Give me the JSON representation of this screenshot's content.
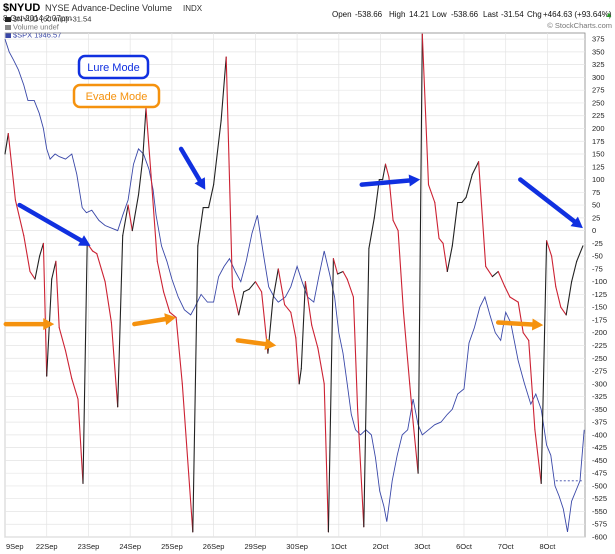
{
  "header": {
    "symbol": "$NYUD",
    "name": "NYSE Advance-Decline Volume",
    "exchange": "INDX",
    "date": "8-Oct-2014 2:07pm",
    "ohlc": {
      "open_label": "Open",
      "open": "-538.66",
      "high_label": "High",
      "high": "14.21",
      "low_label": "Low",
      "low": "-538.66",
      "last_label": "Last",
      "last": "-31.54",
      "chg_label": "Chg",
      "chg": "+464.63 (+93.64%)",
      "up_arrow": "▲"
    },
    "watermark": "© StockCharts.com"
  },
  "legend": [
    {
      "label": "$NYUD (60 min) -31.54",
      "color": "#222222"
    },
    {
      "label": "Volume undef",
      "color": "#888888"
    },
    {
      "label": "$SPX 1946.57",
      "color": "#3a48a8"
    }
  ],
  "annotations": {
    "lure_mode": "Lure Mode",
    "evade_mode": "Evade Mode",
    "lure_color": "#1030e0",
    "evade_color": "#f5920e"
  },
  "chart_data": {
    "type": "line",
    "y_axis": {
      "min": -600,
      "max": 375,
      "step": 25,
      "labels": [
        "375",
        "350",
        "325",
        "300",
        "275",
        "250",
        "225",
        "200",
        "175",
        "150",
        "125",
        "100",
        "75",
        "50",
        "25",
        "0",
        "-25",
        "-50",
        "-75",
        "-100",
        "-125",
        "-150",
        "-175",
        "-200",
        "-225",
        "-250",
        "-275",
        "-300",
        "-325",
        "-350",
        "-375",
        "-400",
        "-425",
        "-450",
        "-475",
        "-500",
        "-525",
        "-550",
        "-575",
        "-600"
      ]
    },
    "x_axis": {
      "ticks": [
        {
          "label": "9Sep",
          "pos": 0
        },
        {
          "label": "22Sep",
          "pos": 1
        },
        {
          "label": "23Sep",
          "pos": 2
        },
        {
          "label": "24Sep",
          "pos": 3
        },
        {
          "label": "25Sep",
          "pos": 4
        },
        {
          "label": "26Sep",
          "pos": 5
        },
        {
          "label": "29Sep",
          "pos": 6
        },
        {
          "label": "30Sep",
          "pos": 7
        },
        {
          "label": "1Oct",
          "pos": 8
        },
        {
          "label": "2Oct",
          "pos": 9
        },
        {
          "label": "3Oct",
          "pos": 10
        },
        {
          "label": "6Oct",
          "pos": 11
        },
        {
          "label": "7Oct",
          "pos": 12
        },
        {
          "label": "8Oct",
          "pos": 13
        }
      ],
      "x_max": 13.9
    },
    "grid": true,
    "reference_line": {
      "value": -490,
      "x_from": 13.2,
      "x_to": 13.85,
      "color": "#3a48a8"
    },
    "series": [
      {
        "name": "$NYUD (60 min) -31.54",
        "color_up": "#222222",
        "color_down": "#cc2233",
        "points": [
          [
            0.0,
            150
          ],
          [
            0.08,
            190
          ],
          [
            0.25,
            60
          ],
          [
            0.45,
            -10
          ],
          [
            0.6,
            -80
          ],
          [
            0.72,
            -95
          ],
          [
            0.83,
            -50
          ],
          [
            0.92,
            -25
          ],
          [
            1.0,
            -285
          ],
          [
            1.12,
            -95
          ],
          [
            1.22,
            -60
          ],
          [
            1.3,
            -190
          ],
          [
            1.45,
            -235
          ],
          [
            1.6,
            -290
          ],
          [
            1.75,
            -330
          ],
          [
            1.87,
            -495
          ],
          [
            1.97,
            -25
          ],
          [
            2.1,
            -40
          ],
          [
            2.2,
            -45
          ],
          [
            2.4,
            -100
          ],
          [
            2.55,
            -180
          ],
          [
            2.7,
            -345
          ],
          [
            2.82,
            -10
          ],
          [
            2.95,
            50
          ],
          [
            3.05,
            0
          ],
          [
            3.2,
            70
          ],
          [
            3.3,
            140
          ],
          [
            3.38,
            240
          ],
          [
            3.5,
            110
          ],
          [
            3.65,
            -60
          ],
          [
            3.8,
            -120
          ],
          [
            3.95,
            -160
          ],
          [
            4.1,
            -170
          ],
          [
            4.25,
            -300
          ],
          [
            4.5,
            -590
          ],
          [
            4.62,
            -30
          ],
          [
            4.75,
            45
          ],
          [
            4.88,
            45
          ],
          [
            5.0,
            90
          ],
          [
            5.18,
            215
          ],
          [
            5.3,
            340
          ],
          [
            5.45,
            -110
          ],
          [
            5.6,
            -165
          ],
          [
            5.72,
            -120
          ],
          [
            5.85,
            -115
          ],
          [
            6.0,
            -100
          ],
          [
            6.15,
            -120
          ],
          [
            6.3,
            -240
          ],
          [
            6.42,
            -135
          ],
          [
            6.55,
            -75
          ],
          [
            6.7,
            -145
          ],
          [
            6.85,
            -160
          ],
          [
            6.97,
            -210
          ],
          [
            7.05,
            -300
          ],
          [
            7.1,
            -270
          ],
          [
            7.2,
            -100
          ],
          [
            7.35,
            -185
          ],
          [
            7.5,
            -230
          ],
          [
            7.65,
            -300
          ],
          [
            7.75,
            -590
          ],
          [
            7.87,
            -55
          ],
          [
            7.97,
            -85
          ],
          [
            8.1,
            -80
          ],
          [
            8.2,
            -95
          ],
          [
            8.35,
            -130
          ],
          [
            8.45,
            -350
          ],
          [
            8.6,
            -580
          ],
          [
            8.72,
            -35
          ],
          [
            8.85,
            25
          ],
          [
            8.97,
            100
          ],
          [
            9.05,
            100
          ],
          [
            9.12,
            130
          ],
          [
            9.2,
            105
          ],
          [
            9.3,
            20
          ],
          [
            9.42,
            0
          ],
          [
            9.55,
            -160
          ],
          [
            9.7,
            -300
          ],
          [
            9.78,
            -375
          ],
          [
            9.9,
            -475
          ],
          [
            10.0,
            385
          ],
          [
            10.15,
            90
          ],
          [
            10.3,
            55
          ],
          [
            10.4,
            -15
          ],
          [
            10.5,
            -25
          ],
          [
            10.6,
            -80
          ],
          [
            10.72,
            -30
          ],
          [
            10.85,
            55
          ],
          [
            10.95,
            55
          ],
          [
            11.05,
            65
          ],
          [
            11.2,
            110
          ],
          [
            11.35,
            135
          ],
          [
            11.52,
            -70
          ],
          [
            11.68,
            -90
          ],
          [
            11.82,
            -80
          ],
          [
            11.98,
            -110
          ],
          [
            12.1,
            -130
          ],
          [
            12.3,
            -140
          ],
          [
            12.42,
            -200
          ],
          [
            12.55,
            -215
          ],
          [
            12.7,
            -390
          ],
          [
            12.85,
            -495
          ],
          [
            12.98,
            -20
          ],
          [
            13.1,
            -50
          ],
          [
            13.2,
            -110
          ],
          [
            13.32,
            -150
          ],
          [
            13.45,
            -165
          ],
          [
            13.58,
            -100
          ],
          [
            13.7,
            -60
          ],
          [
            13.85,
            -30
          ]
        ]
      },
      {
        "name": "$SPX 1946.57",
        "color": "#3a48a8",
        "points": [
          [
            0.0,
            375
          ],
          [
            0.1,
            350
          ],
          [
            0.2,
            335
          ],
          [
            0.32,
            315
          ],
          [
            0.45,
            285
          ],
          [
            0.55,
            255
          ],
          [
            0.7,
            255
          ],
          [
            0.82,
            230
          ],
          [
            0.92,
            200
          ],
          [
            1.0,
            160
          ],
          [
            1.08,
            140
          ],
          [
            1.2,
            150
          ],
          [
            1.3,
            145
          ],
          [
            1.45,
            140
          ],
          [
            1.6,
            150
          ],
          [
            1.72,
            110
          ],
          [
            1.85,
            45
          ],
          [
            1.95,
            35
          ],
          [
            2.08,
            40
          ],
          [
            2.25,
            20
          ],
          [
            2.4,
            10
          ],
          [
            2.55,
            5
          ],
          [
            2.7,
            0
          ],
          [
            2.82,
            30
          ],
          [
            2.95,
            60
          ],
          [
            3.08,
            130
          ],
          [
            3.2,
            160
          ],
          [
            3.32,
            150
          ],
          [
            3.45,
            120
          ],
          [
            3.55,
            80
          ],
          [
            3.62,
            30
          ],
          [
            3.75,
            -30
          ],
          [
            3.88,
            -60
          ],
          [
            4.0,
            -95
          ],
          [
            4.15,
            -130
          ],
          [
            4.3,
            -155
          ],
          [
            4.45,
            -165
          ],
          [
            4.55,
            -150
          ],
          [
            4.7,
            -125
          ],
          [
            4.85,
            -140
          ],
          [
            5.0,
            -140
          ],
          [
            5.12,
            -90
          ],
          [
            5.25,
            -70
          ],
          [
            5.38,
            -55
          ],
          [
            5.52,
            -80
          ],
          [
            5.65,
            -100
          ],
          [
            5.78,
            -60
          ],
          [
            5.92,
            -5
          ],
          [
            6.05,
            30
          ],
          [
            6.2,
            -50
          ],
          [
            6.32,
            -110
          ],
          [
            6.45,
            -130
          ],
          [
            6.55,
            -140
          ],
          [
            6.72,
            -130
          ],
          [
            6.85,
            -110
          ],
          [
            7.0,
            -70
          ],
          [
            7.12,
            -100
          ],
          [
            7.25,
            -130
          ],
          [
            7.4,
            -140
          ],
          [
            7.52,
            -90
          ],
          [
            7.65,
            -40
          ],
          [
            7.78,
            -85
          ],
          [
            7.9,
            -130
          ],
          [
            8.0,
            -200
          ],
          [
            8.1,
            -240
          ],
          [
            8.2,
            -300
          ],
          [
            8.3,
            -360
          ],
          [
            8.4,
            -390
          ],
          [
            8.52,
            -400
          ],
          [
            8.65,
            -390
          ],
          [
            8.78,
            -400
          ],
          [
            8.88,
            -445
          ],
          [
            8.98,
            -510
          ],
          [
            9.08,
            -540
          ],
          [
            9.15,
            -570
          ],
          [
            9.28,
            -490
          ],
          [
            9.4,
            -440
          ],
          [
            9.52,
            -400
          ],
          [
            9.65,
            -390
          ],
          [
            9.78,
            -330
          ],
          [
            9.9,
            -380
          ],
          [
            10.0,
            -400
          ],
          [
            10.15,
            -390
          ],
          [
            10.3,
            -380
          ],
          [
            10.45,
            -375
          ],
          [
            10.6,
            -360
          ],
          [
            10.72,
            -350
          ],
          [
            10.85,
            -320
          ],
          [
            11.0,
            -310
          ],
          [
            11.12,
            -220
          ],
          [
            11.25,
            -190
          ],
          [
            11.38,
            -150
          ],
          [
            11.5,
            -130
          ],
          [
            11.62,
            -165
          ],
          [
            11.75,
            -200
          ],
          [
            11.88,
            -215
          ],
          [
            12.0,
            -160
          ],
          [
            12.12,
            -180
          ],
          [
            12.3,
            -255
          ],
          [
            12.45,
            -300
          ],
          [
            12.6,
            -340
          ],
          [
            12.72,
            -320
          ],
          [
            12.85,
            -350
          ],
          [
            12.98,
            -420
          ],
          [
            13.08,
            -440
          ],
          [
            13.18,
            -500
          ],
          [
            13.28,
            -520
          ],
          [
            13.38,
            -545
          ],
          [
            13.48,
            -590
          ],
          [
            13.58,
            -530
          ],
          [
            13.68,
            -510
          ],
          [
            13.78,
            -490
          ],
          [
            13.88,
            -390
          ]
        ]
      }
    ],
    "markers": [
      {
        "kind": "lure",
        "from": [
          0.35,
          50
        ],
        "to": [
          2.05,
          -30
        ]
      },
      {
        "kind": "lure",
        "from": [
          4.22,
          160
        ],
        "to": [
          4.8,
          80
        ]
      },
      {
        "kind": "lure",
        "from": [
          8.55,
          90
        ],
        "to": [
          9.95,
          100
        ]
      },
      {
        "kind": "lure",
        "from": [
          12.35,
          100
        ],
        "to": [
          13.85,
          5
        ]
      },
      {
        "kind": "evade",
        "from": [
          0.02,
          -183
        ],
        "to": [
          1.18,
          -183
        ]
      },
      {
        "kind": "evade",
        "from": [
          3.1,
          -183
        ],
        "to": [
          4.1,
          -170
        ]
      },
      {
        "kind": "evade",
        "from": [
          5.58,
          -215
        ],
        "to": [
          6.5,
          -225
        ]
      },
      {
        "kind": "evade",
        "from": [
          11.82,
          -180
        ],
        "to": [
          12.9,
          -185
        ]
      }
    ]
  }
}
